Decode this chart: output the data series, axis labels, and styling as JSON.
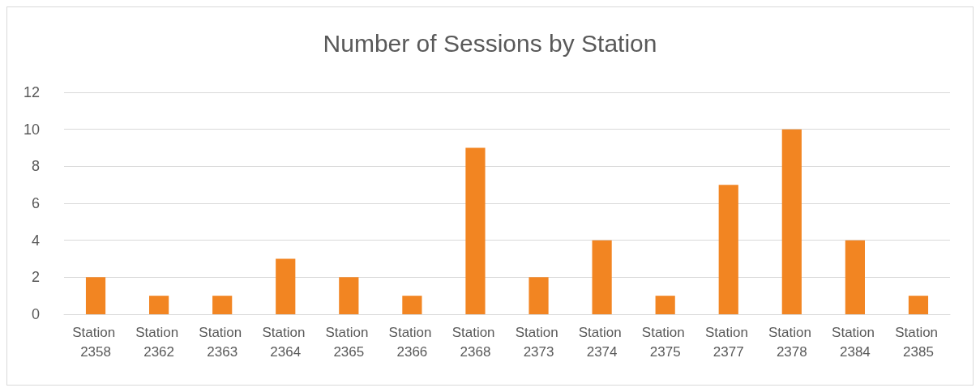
{
  "chart_data": {
    "type": "bar",
    "title": "Number of Sessions by Station",
    "categories": [
      "Station 2358",
      "Station 2362",
      "Station 2363",
      "Station 2364",
      "Station 2365",
      "Station 2366",
      "Station 2368",
      "Station 2373",
      "Station 2374",
      "Station 2375",
      "Station 2377",
      "Station 2378",
      "Station 2384",
      "Station 2385"
    ],
    "values": [
      2,
      1,
      1,
      3,
      2,
      1,
      9,
      2,
      4,
      1,
      7,
      10,
      4,
      1
    ],
    "color": "#f28522",
    "ylim": [
      0,
      12
    ],
    "yticks": [
      0,
      2,
      4,
      6,
      8,
      10,
      12
    ],
    "grid": "y"
  }
}
